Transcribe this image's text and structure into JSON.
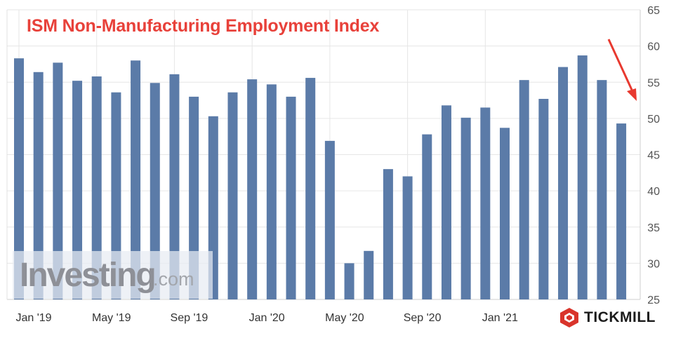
{
  "chart_data": {
    "type": "bar",
    "title": "ISM Non-Manufacturing Employment Index",
    "categories": [
      "Jan '19",
      "Feb '19",
      "Mar '19",
      "Apr '19",
      "May '19",
      "Jun '19",
      "Jul '19",
      "Aug '19",
      "Sep '19",
      "Oct '19",
      "Nov '19",
      "Dec '19",
      "Jan '20",
      "Feb '20",
      "Mar '20",
      "Apr '20",
      "May '20",
      "Jun '20",
      "Jul '20",
      "Aug '20",
      "Sep '20",
      "Oct '20",
      "Nov '20",
      "Dec '20",
      "Jan '21",
      "Feb '21",
      "Mar '21",
      "Apr '21",
      "May '21",
      "Jun '21",
      "Jul '21",
      "Aug '21"
    ],
    "values": [
      58.3,
      56.4,
      57.7,
      55.2,
      55.8,
      53.6,
      58.0,
      54.9,
      56.1,
      53.0,
      50.3,
      53.6,
      55.4,
      54.7,
      53.0,
      55.6,
      46.9,
      30.0,
      31.7,
      43.0,
      42.0,
      47.8,
      51.8,
      50.1,
      51.5,
      48.7,
      55.3,
      52.7,
      57.1,
      58.7,
      55.3,
      49.3
    ],
    "x_tick_labels": [
      "Jan '19",
      "May '19",
      "Sep '19",
      "Jan '20",
      "May '20",
      "Sep '20",
      "Jan '21"
    ],
    "y_ticks": [
      25,
      30,
      35,
      40,
      45,
      50,
      55,
      60,
      65
    ],
    "ylim": [
      25,
      65
    ],
    "grid": true,
    "bar_color": "#5b7ba8",
    "title_color": "#e8413a",
    "arrow_color": "#e8392f"
  },
  "watermark": {
    "main": "Investing",
    "sub": ".com"
  },
  "brand": {
    "name": "TICKMILL",
    "logo_icon": "tickmill-hexagon-icon",
    "logo_color": "#d9342b"
  }
}
